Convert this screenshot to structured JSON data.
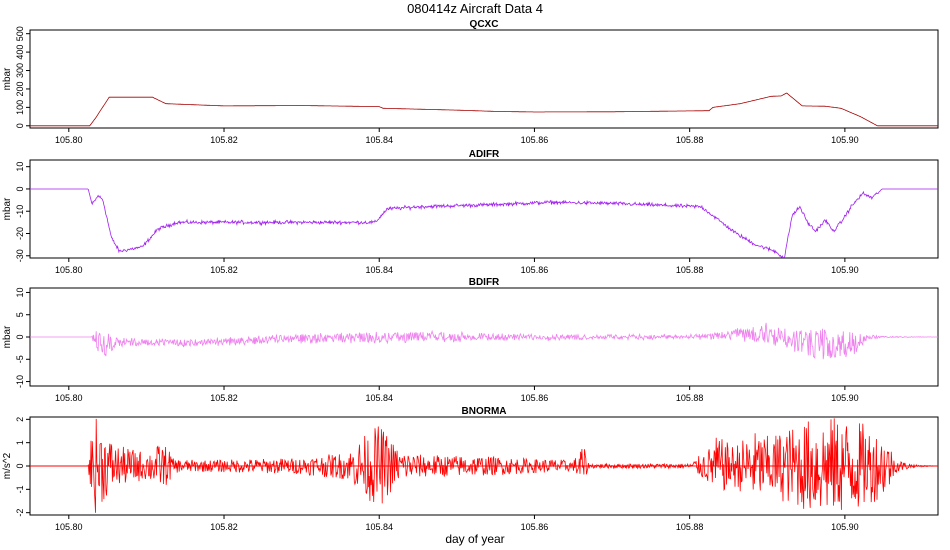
{
  "title": "080414z   Aircraft Data 4",
  "xlabel": "day of year",
  "colors": {
    "QCXC": "#a50000",
    "ADIFR": "#a020f0",
    "BDIFR": "#ee82ee",
    "BNORMA": "#ff0000",
    "zero_line": "#ff0000"
  },
  "chart_data": [
    {
      "type": "line",
      "title": "QCXC",
      "ylabel": "mbar",
      "xlim": [
        105.795,
        105.912
      ],
      "ylim": [
        -12,
        520
      ],
      "xticks": [
        "105.80",
        "105.82",
        "105.84",
        "105.86",
        "105.88",
        "105.90"
      ],
      "yticks": [
        "0",
        "100",
        "200",
        "300",
        "400",
        "500"
      ],
      "zero_line": false,
      "noise": 0,
      "series": [
        {
          "x": [
            105.795,
            105.8027,
            105.8035,
            105.8052,
            105.8108,
            105.8125,
            105.82,
            105.83,
            105.84,
            105.8405,
            105.85,
            105.855,
            105.86,
            105.87,
            105.8825,
            105.883,
            105.8865,
            105.8905,
            105.8918,
            105.8925,
            105.8945,
            105.8975,
            105.8995,
            105.902,
            105.9042,
            105.912
          ],
          "y": [
            0,
            0,
            45,
            155,
            155,
            120,
            108,
            110,
            104,
            95,
            85,
            78,
            75,
            76,
            82,
            100,
            120,
            160,
            162,
            178,
            108,
            106,
            95,
            50,
            0,
            0
          ]
        }
      ]
    },
    {
      "type": "line",
      "title": "ADIFR",
      "ylabel": "mbar",
      "xlim": [
        105.795,
        105.912
      ],
      "ylim": [
        -31,
        13
      ],
      "xticks": [
        "105.80",
        "105.82",
        "105.84",
        "105.86",
        "105.88",
        "105.90"
      ],
      "yticks": [
        "-30",
        "-20",
        "-10",
        "0",
        "10"
      ],
      "zero_line": false,
      "noise": 0.6,
      "series": [
        {
          "x": [
            105.795,
            105.8025,
            105.803,
            105.8038,
            105.8044,
            105.8055,
            105.8065,
            105.8095,
            105.8115,
            105.814,
            105.826,
            105.835,
            105.8395,
            105.841,
            105.845,
            105.855,
            105.862,
            105.87,
            105.8815,
            105.883,
            105.886,
            105.8885,
            105.891,
            105.8922,
            105.8932,
            105.8942,
            105.8952,
            105.8962,
            105.8975,
            105.8985,
            105.8995,
            105.9008,
            105.9023,
            105.9035,
            105.9048,
            105.912
          ],
          "y": [
            0,
            0,
            -7,
            -3,
            -5,
            -22,
            -28,
            -26,
            -18,
            -15,
            -15,
            -15,
            -15,
            -9,
            -8,
            -7,
            -6,
            -6.5,
            -8,
            -12,
            -20,
            -25,
            -28,
            -31,
            -12,
            -8,
            -15,
            -19,
            -14,
            -19,
            -15,
            -8,
            -2,
            -4,
            0,
            0
          ]
        }
      ]
    },
    {
      "type": "line",
      "title": "BDIFR",
      "ylabel": "mbar",
      "xlim": [
        105.795,
        105.912
      ],
      "ylim": [
        -11,
        11
      ],
      "xticks": [
        "105.80",
        "105.82",
        "105.84",
        "105.86",
        "105.88",
        "105.90"
      ],
      "yticks": [
        "-10",
        "-5",
        "0",
        "5",
        "10"
      ],
      "zero_line": false,
      "noise": 0.25,
      "series": [
        {
          "x": [
            105.795,
            105.803,
            105.8045,
            105.806,
            105.81,
            105.815,
            105.82,
            105.83,
            105.84,
            105.85,
            105.86,
            105.87,
            105.88,
            105.8825,
            105.886,
            105.89,
            105.8935,
            105.896,
            105.899,
            105.9015,
            105.903,
            105.912
          ],
          "y": [
            0,
            0,
            -1.5,
            -1.2,
            -1.2,
            -1.3,
            -1,
            -0.3,
            0,
            0,
            0,
            0,
            0,
            0.2,
            0.5,
            0.8,
            -0.8,
            -1.5,
            -2,
            -1.2,
            0,
            0
          ]
        }
      ],
      "spread": {
        "x": [
          105.795,
          105.803,
          105.8033,
          105.8045,
          105.806,
          105.81,
          105.84,
          105.86,
          105.882,
          105.8835,
          105.893,
          105.897,
          105.899,
          105.9015,
          105.903,
          105.912
        ],
        "y": [
          0,
          0,
          2,
          3.5,
          1,
          0.6,
          1.2,
          0.5,
          0.4,
          1,
          2.5,
          3.5,
          3,
          2.5,
          0.2,
          0
        ]
      }
    },
    {
      "type": "line",
      "title": "BNORMA",
      "ylabel": "m/s^2",
      "xlim": [
        105.795,
        105.912
      ],
      "ylim": [
        -2.1,
        2.1
      ],
      "xticks": [
        "105.80",
        "105.82",
        "105.84",
        "105.86",
        "105.88",
        "105.90"
      ],
      "yticks": [
        "-2",
        "-1",
        "0",
        "1",
        "2"
      ],
      "zero_line": true,
      "noise": 0,
      "series": [
        {
          "x": [
            105.795,
            105.912
          ],
          "y": [
            0,
            0
          ]
        }
      ],
      "spread": {
        "x": [
          105.795,
          105.8025,
          105.8028,
          105.8035,
          105.8045,
          105.806,
          105.81,
          105.812,
          105.813,
          105.8135,
          105.817,
          105.83,
          105.836,
          105.838,
          105.84,
          105.841,
          105.8425,
          105.845,
          105.85,
          105.855,
          105.86,
          105.863,
          105.865,
          105.866,
          105.8665,
          105.867,
          105.88,
          105.8825,
          105.8835,
          105.8855,
          105.8875,
          105.8885,
          105.89,
          105.8925,
          105.896,
          105.899,
          105.902,
          105.9055,
          105.9065,
          105.909,
          105.912
        ],
        "y": [
          0,
          0,
          1.2,
          2.1,
          1.5,
          0.9,
          0.6,
          1,
          0.7,
          0.3,
          0.25,
          0.35,
          0.6,
          1.3,
          1.8,
          1.4,
          0.7,
          0.5,
          0.45,
          0.4,
          0.3,
          0.3,
          0.2,
          0.9,
          0.7,
          0.1,
          0.1,
          0.8,
          1.3,
          0.9,
          1.3,
          1.5,
          1.3,
          1.6,
          2.1,
          2.1,
          1.9,
          1.2,
          0.3,
          0.05,
          0
        ]
      }
    }
  ]
}
